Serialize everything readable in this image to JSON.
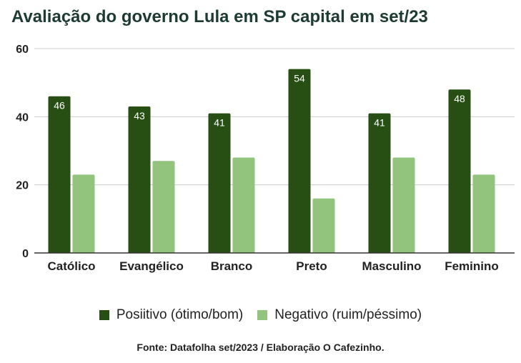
{
  "title": "Avaliação do governo Lula em SP capital em set/23",
  "source": "Fonte: Datafolha set/2023 / Elaboração O Cafezinho.",
  "colors": {
    "positive": "#274e13",
    "negative": "#93c47d",
    "grid": "#cccccc",
    "axis": "#333333"
  },
  "chart_data": {
    "type": "bar",
    "categories": [
      "Católico",
      "Evangélico",
      "Branco",
      "Preto",
      "Masculino",
      "Feminino"
    ],
    "series": [
      {
        "name": "Posiitivo (ótimo/bom)",
        "values": [
          46,
          43,
          41,
          54,
          41,
          48
        ],
        "show_labels": true
      },
      {
        "name": "Negativo (ruim/péssimo)",
        "values": [
          23,
          27,
          28,
          16,
          28,
          23
        ],
        "show_labels": false
      }
    ],
    "yticks": [
      0,
      20,
      40,
      60
    ],
    "ylim": [
      0,
      60
    ],
    "grid": true,
    "legend_position": "bottom"
  }
}
